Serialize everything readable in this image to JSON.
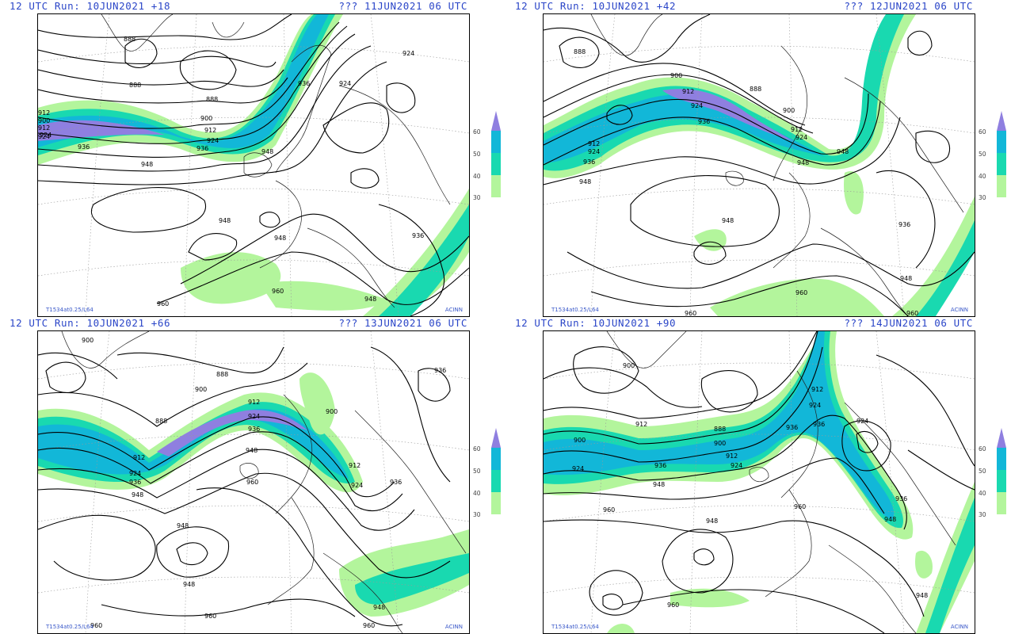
{
  "legend": {
    "levels": [
      "60",
      "50",
      "40",
      "30"
    ],
    "colors": [
      "#8f7fe0",
      "#12b7d8",
      "#19d9b0",
      "#b3f59c"
    ]
  },
  "panels": [
    {
      "header_left": "12 UTC Run: 10JUN2021 +18",
      "header_right": "??? 11JUN2021 06 UTC",
      "footer_left": "T1534at0.25/L64",
      "footer_right": "ACINN",
      "contour_labels": [
        "888",
        "888",
        "888",
        "900",
        "912",
        "924",
        "936",
        "948",
        "924",
        "924",
        "936",
        "948",
        "948",
        "948",
        "936",
        "960",
        "960",
        "948",
        "900",
        "912",
        "924",
        "936",
        "912",
        "924"
      ]
    },
    {
      "header_left": "12 UTC Run: 10JUN2021 +42",
      "header_right": "??? 12JUN2021 06 UTC",
      "footer_left": "T1534at0.25/L64",
      "footer_right": "ACINN",
      "contour_labels": [
        "888",
        "900",
        "912",
        "924",
        "936",
        "888",
        "900",
        "912",
        "924",
        "948",
        "912",
        "924",
        "936",
        "948",
        "948",
        "936",
        "948",
        "960",
        "960",
        "948",
        "960"
      ]
    },
    {
      "header_left": "12 UTC Run: 10JUN2021 +66",
      "header_right": "??? 13JUN2021 06 UTC",
      "footer_left": "T1534at0.25/L64",
      "footer_right": "ACINN",
      "contour_labels": [
        "900",
        "888",
        "888",
        "900",
        "912",
        "924",
        "936",
        "948",
        "912",
        "924",
        "936",
        "948",
        "960",
        "948",
        "948",
        "900",
        "912",
        "924",
        "936",
        "936",
        "948",
        "960",
        "960",
        "960"
      ]
    },
    {
      "header_left": "12 UTC Run: 10JUN2021 +90",
      "header_right": "??? 14JUN2021 06 UTC",
      "footer_left": "T1534at0.25/L64",
      "footer_right": "ACINN",
      "contour_labels": [
        "900",
        "912",
        "900",
        "924",
        "936",
        "948",
        "960",
        "888",
        "900",
        "912",
        "924",
        "936",
        "924",
        "936",
        "912",
        "924",
        "936",
        "948",
        "960",
        "960",
        "948",
        "948"
      ]
    }
  ]
}
